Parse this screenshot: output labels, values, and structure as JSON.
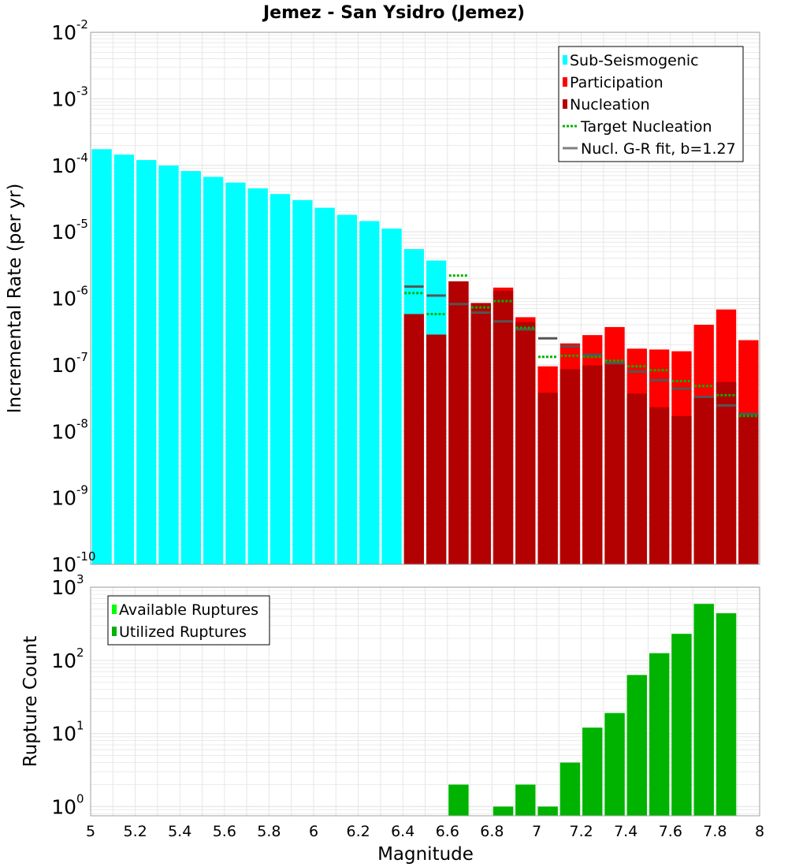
{
  "title": "Jemez - San Ysidro (Jemez)",
  "colors": {
    "sub_seismogenic": "#00ffff",
    "participation": "#ff0000",
    "nucleation": "#b30000",
    "target_nucleation": "#00b300",
    "gr_fit": "#808080",
    "available": "#00ff00",
    "utilized": "#00b300",
    "grid": "#e6e6e6",
    "frame": "#a0a0a0"
  },
  "chart_data": [
    {
      "type": "bar",
      "panel": "top",
      "title": "Jemez - San Ysidro (Jemez)",
      "xlabel": "Magnitude",
      "ylabel": "Incremental Rate (per yr)",
      "xlim": [
        5,
        8
      ],
      "ylim": [
        1e-10,
        0.01
      ],
      "yscale": "log",
      "grid": true,
      "legend_position": "top-right",
      "y_tick_labels": [
        {
          "base": "10",
          "exp": "-10",
          "value": 1e-10
        },
        {
          "base": "10",
          "exp": "-9",
          "value": 1e-09
        },
        {
          "base": "10",
          "exp": "-8",
          "value": 1e-08
        },
        {
          "base": "10",
          "exp": "-7",
          "value": 1e-07
        },
        {
          "base": "10",
          "exp": "-6",
          "value": 1e-06
        },
        {
          "base": "10",
          "exp": "-5",
          "value": 1e-05
        },
        {
          "base": "10",
          "exp": "-4",
          "value": 0.0001
        },
        {
          "base": "10",
          "exp": "-3",
          "value": 0.001
        },
        {
          "base": "10",
          "exp": "-2",
          "value": 0.01
        }
      ],
      "x_tick_labels": [
        "5",
        "5.2",
        "5.4",
        "5.6",
        "5.8",
        "6",
        "6.2",
        "6.4",
        "6.6",
        "6.8",
        "7",
        "7.2",
        "7.4",
        "7.6",
        "7.8",
        "8"
      ],
      "bin_width": 0.1,
      "series": [
        {
          "name": "Sub-Seismogenic",
          "style": "bar",
          "x": [
            5.05,
            5.15,
            5.25,
            5.35,
            5.45,
            5.55,
            5.65,
            5.75,
            5.85,
            5.95,
            6.05,
            6.15,
            6.25,
            6.35,
            6.45,
            6.55
          ],
          "values": [
            0.000175,
            0.000145,
            0.00012,
            9.9e-05,
            8.2e-05,
            6.7e-05,
            5.5e-05,
            4.5e-05,
            3.7e-05,
            3e-05,
            2.3e-05,
            1.8e-05,
            1.45e-05,
            1.12e-05,
            5.5e-06,
            3.7e-06
          ]
        },
        {
          "name": "Participation",
          "style": "bar",
          "x": [
            6.65,
            6.75,
            6.85,
            6.95,
            7.05,
            7.15,
            7.25,
            7.35,
            7.45,
            7.55,
            7.65,
            7.75,
            7.85,
            7.95
          ],
          "values": [
            1.8e-06,
            8.5e-07,
            1.45e-06,
            5.2e-07,
            9.5e-08,
            2.1e-07,
            2.8e-07,
            3.7e-07,
            1.75e-07,
            1.7e-07,
            1.6e-07,
            4e-07,
            6.8e-07,
            2.35e-07
          ]
        },
        {
          "name": "Nucleation",
          "style": "bar",
          "x": [
            6.45,
            6.55,
            6.65,
            6.75,
            6.85,
            6.95,
            7.05,
            7.15,
            7.25,
            7.35,
            7.45,
            7.55,
            7.65,
            7.75,
            7.85,
            7.95
          ],
          "values": [
            5.8e-07,
            2.85e-07,
            1.8e-06,
            8.5e-07,
            1.3e-06,
            4.4e-07,
            3.8e-08,
            8.6e-08,
            9.8e-08,
            1.1e-07,
            3.7e-08,
            2.3e-08,
            1.7e-08,
            3.3e-08,
            5.5e-08,
            1.9e-08
          ]
        },
        {
          "name": "Target Nucleation",
          "style": "dotted-step",
          "x": [
            6.45,
            6.55,
            6.65,
            6.75,
            6.85,
            6.95,
            7.05,
            7.15,
            7.25,
            7.35,
            7.45,
            7.55,
            7.65,
            7.75,
            7.85,
            7.95
          ],
          "values": [
            1.2e-06,
            5.8e-07,
            2.2e-06,
            7.3e-07,
            9.1e-07,
            3.6e-07,
            1.32e-07,
            1.37e-07,
            1.32e-07,
            1.15e-07,
            9.5e-08,
            8.3e-08,
            5.7e-08,
            4.8e-08,
            3.5e-08,
            1.7e-08
          ]
        },
        {
          "name": "Nucl. G-R fit, b=1.27",
          "style": "step",
          "x": [
            6.45,
            6.55,
            6.65,
            6.75,
            6.85,
            6.95,
            7.05,
            7.15,
            7.25,
            7.35,
            7.45,
            7.55,
            7.65,
            7.75,
            7.85,
            7.95
          ],
          "values": [
            1.5e-06,
            1.1e-06,
            8.2e-07,
            6.1e-07,
            4.5e-07,
            3.4e-07,
            2.5e-07,
            1.9e-07,
            1.42e-07,
            1.06e-07,
            7.9e-08,
            5.9e-08,
            4.4e-08,
            3.3e-08,
            2.45e-08,
            1.83e-08
          ]
        }
      ]
    },
    {
      "type": "bar",
      "panel": "bottom",
      "xlabel": "Magnitude",
      "ylabel": "Rupture Count",
      "xlim": [
        5,
        8
      ],
      "ylim": [
        0.75,
        1000
      ],
      "yscale": "log",
      "grid": true,
      "legend_position": "top-left",
      "y_tick_labels": [
        {
          "base": "10",
          "exp": "0",
          "value": 1
        },
        {
          "base": "10",
          "exp": "1",
          "value": 10
        },
        {
          "base": "10",
          "exp": "2",
          "value": 100
        },
        {
          "base": "10",
          "exp": "3",
          "value": 1000
        }
      ],
      "x_tick_labels": [
        "5",
        "5.2",
        "5.4",
        "5.6",
        "5.8",
        "6",
        "6.2",
        "6.4",
        "6.6",
        "6.8",
        "7",
        "7.2",
        "7.4",
        "7.6",
        "7.8",
        "8"
      ],
      "bin_width": 0.1,
      "series": [
        {
          "name": "Available Ruptures",
          "style": "bar",
          "x": [
            6.65,
            6.85,
            6.95,
            7.05,
            7.15,
            7.25,
            7.35,
            7.45,
            7.55,
            7.65,
            7.75,
            7.85
          ],
          "values": [
            2,
            1,
            2,
            1,
            4,
            12,
            19,
            63,
            125,
            230,
            590,
            440
          ]
        },
        {
          "name": "Utilized Ruptures",
          "style": "bar",
          "x": [
            6.65,
            6.85,
            6.95,
            7.05,
            7.15,
            7.25,
            7.35,
            7.45,
            7.55,
            7.65,
            7.75,
            7.85
          ],
          "values": [
            2,
            1,
            2,
            1,
            4,
            12,
            19,
            63,
            125,
            230,
            590,
            440
          ]
        }
      ]
    }
  ]
}
